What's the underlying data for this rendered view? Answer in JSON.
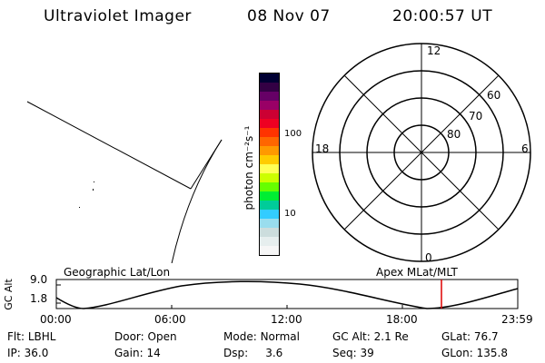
{
  "header": {
    "instrument": "Ultraviolet Imager",
    "date": "08 Nov 07",
    "time": "20:00:57 UT"
  },
  "map_panel": {
    "label": "Geographic Lat/Lon"
  },
  "colorbar": {
    "unit_label": "photon cm⁻²s⁻¹",
    "tick_labels": [
      "100",
      "10"
    ],
    "colors": [
      "#000033",
      "#330044",
      "#660066",
      "#990066",
      "#cc0033",
      "#ee0022",
      "#ff3300",
      "#ff6600",
      "#ff9900",
      "#ffcc00",
      "#ffff55",
      "#ccff00",
      "#66ff00",
      "#00ee33",
      "#00cc99",
      "#33ccff",
      "#99ddee",
      "#ccdddd",
      "#e6eeee",
      "#f6f6f6"
    ]
  },
  "polar_plot": {
    "label": "Apex MLat/MLT",
    "mlt_labels": [
      "12",
      "18",
      "6",
      "0"
    ],
    "lat_labels": [
      "60",
      "70",
      "80"
    ]
  },
  "alt_plot": {
    "ylabel": "GC Alt",
    "y_ticks": [
      "9.0",
      "1.8"
    ],
    "x_ticks": [
      "00:00",
      "06:00",
      "12:00",
      "18:00",
      "23:59"
    ],
    "marker_color": "#dd0000"
  },
  "info": {
    "row1": [
      {
        "label": "Flt:",
        "value": "LBHL"
      },
      {
        "label": "Door:",
        "value": "Open"
      },
      {
        "label": "Mode:",
        "value": "Normal"
      },
      {
        "label": "GC Alt:",
        "value": "2.1 Re"
      },
      {
        "label": "GLat:",
        "value": "76.7"
      }
    ],
    "row2": [
      {
        "label": "IP:",
        "value": "36.0"
      },
      {
        "label": "Gain:",
        "value": "14"
      },
      {
        "label": "Dsp:",
        "value": "3.6"
      },
      {
        "label": "Seq:",
        "value": "39"
      },
      {
        "label": "GLon:",
        "value": "135.8"
      }
    ]
  }
}
